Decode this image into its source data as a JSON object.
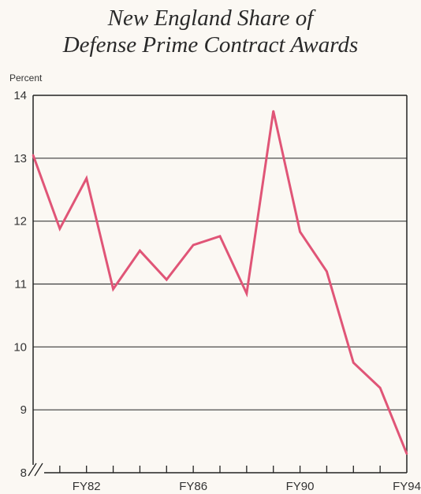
{
  "title_lines": [
    "New England Share of",
    "Defense Prime Contract Awards"
  ],
  "chart_data": {
    "type": "line",
    "title": "New England Share of Defense Prime Contract Awards",
    "ylabel": "Percent",
    "xlabel": "",
    "ylim": [
      8,
      14
    ],
    "yticks": [
      8,
      9,
      10,
      11,
      12,
      13,
      14
    ],
    "xlim": [
      1980,
      1994
    ],
    "xticks": [
      {
        "x": 1982,
        "label": "FY82"
      },
      {
        "x": 1986,
        "label": "FY86"
      },
      {
        "x": 1990,
        "label": "FY90"
      },
      {
        "x": 1994,
        "label": "FY94"
      }
    ],
    "grid": true,
    "axis_break": true,
    "series": [
      {
        "color": "#e05577",
        "x": [
          1980,
          1981,
          1982,
          1983,
          1984,
          1985,
          1986,
          1987,
          1988,
          1989,
          1990,
          1991,
          1992,
          1993,
          1994
        ],
        "values": [
          13.05,
          11.88,
          12.68,
          10.92,
          11.53,
          11.07,
          11.62,
          11.76,
          10.85,
          13.75,
          11.83,
          11.2,
          9.75,
          9.35,
          8.3
        ]
      }
    ]
  }
}
